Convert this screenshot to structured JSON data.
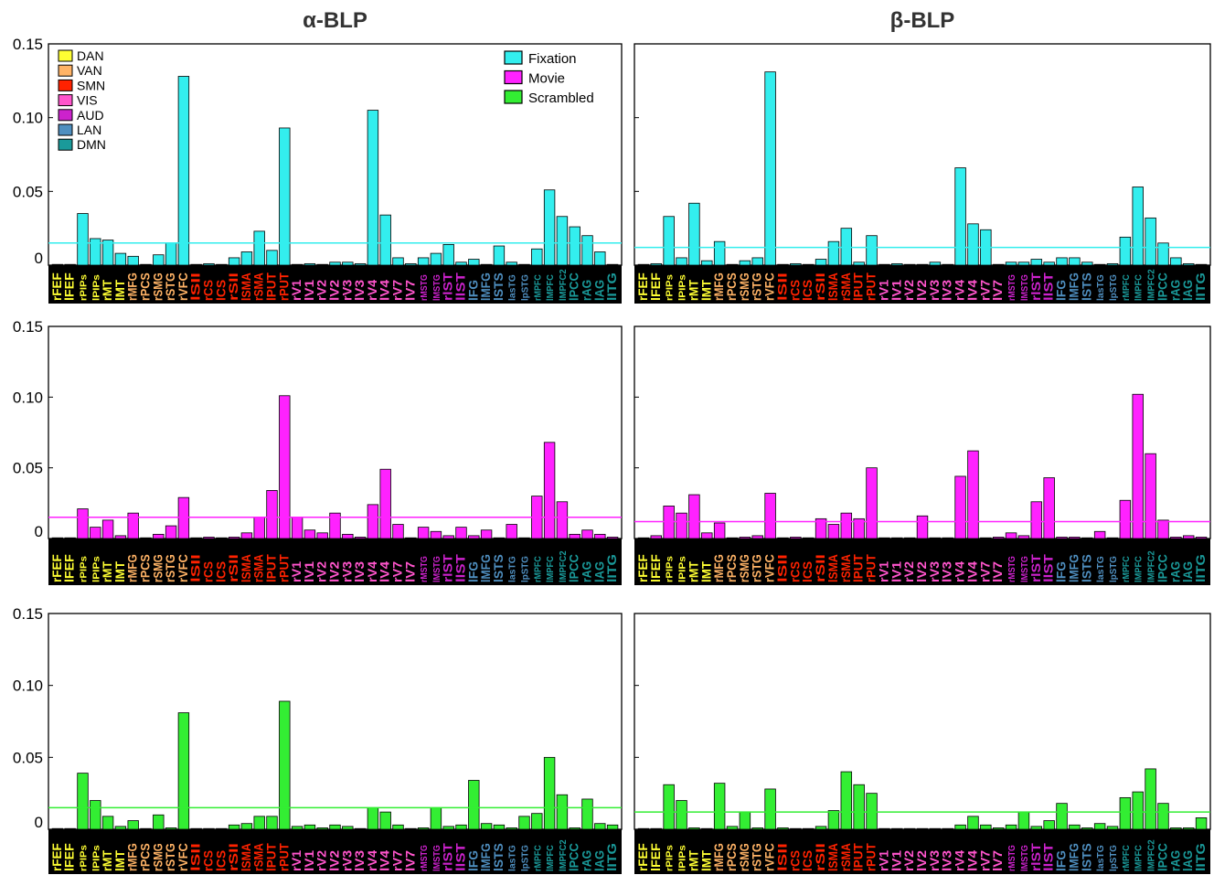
{
  "colors": {
    "DAN": "#ffff33",
    "VAN": "#ffb366",
    "SMN": "#ff2200",
    "VIS": "#ff55cc",
    "AUD": "#cc22cc",
    "LAN": "#4f8fc0",
    "DMN": "#1a9a9a",
    "Fixation": "#33eeee",
    "Movie": "#ff22ff",
    "Scrambled": "#33ee33"
  },
  "chart_data": [
    {
      "type": "bar",
      "title": "α-BLP",
      "condition": "Fixation",
      "ylim": [
        0,
        0.15
      ],
      "yticks": [
        "0",
        "0.05",
        "0.10",
        "0.15"
      ],
      "threshold": 0.015,
      "legend_networks": [
        "DAN",
        "VAN",
        "SMN",
        "VIS",
        "AUD",
        "LAN",
        "DMN"
      ],
      "legend_conditions": [
        "Fixation",
        "Movie",
        "Scrambled"
      ],
      "categories": [
        "rFEF",
        "lFEF",
        "rPIPs",
        "lPIPs",
        "rMT",
        "lMT",
        "rMFG",
        "rPCS",
        "rSMG",
        "rSTG",
        "rVFC",
        "lSII",
        "rCS",
        "lCS",
        "rSII",
        "lSMA",
        "rSMA",
        "lPUT",
        "rPUT",
        "rV1",
        "lV1",
        "rV2",
        "lV2",
        "rV3",
        "lV3",
        "rV4",
        "lV4",
        "rV7",
        "lV7",
        "rMSTG",
        "lMSTG",
        "rlST",
        "llST",
        "lFG",
        "lMFG",
        "lSTS",
        "lasTG",
        "lpSTG",
        "rMPFC",
        "lMPFC",
        "lMPFC2",
        "lPCC",
        "rAG",
        "lAG",
        "lITG"
      ],
      "category_networks": [
        "DAN",
        "DAN",
        "DAN",
        "DAN",
        "DAN",
        "DAN",
        "VAN",
        "VAN",
        "VAN",
        "VAN",
        "VAN",
        "SMN",
        "SMN",
        "SMN",
        "SMN",
        "SMN",
        "SMN",
        "SMN",
        "SMN",
        "VIS",
        "VIS",
        "VIS",
        "VIS",
        "VIS",
        "VIS",
        "VIS",
        "VIS",
        "VIS",
        "VIS",
        "AUD",
        "AUD",
        "AUD",
        "AUD",
        "LAN",
        "LAN",
        "LAN",
        "LAN",
        "LAN",
        "DMN",
        "DMN",
        "DMN",
        "DMN",
        "DMN",
        "DMN",
        "DMN"
      ],
      "values": [
        0.0,
        0.0,
        0.035,
        0.018,
        0.017,
        0.008,
        0.006,
        0.0,
        0.007,
        0.015,
        0.128,
        0.0,
        0.001,
        0.0,
        0.005,
        0.009,
        0.023,
        0.01,
        0.093,
        0.0,
        0.001,
        0.0,
        0.002,
        0.002,
        0.001,
        0.105,
        0.034,
        0.005,
        0.001,
        0.005,
        0.008,
        0.014,
        0.002,
        0.004,
        0.0,
        0.013,
        0.002,
        0.0,
        0.011,
        0.051,
        0.033,
        0.026,
        0.02,
        0.009,
        0.0
      ]
    },
    {
      "type": "bar",
      "title": "β-BLP",
      "condition": "Fixation",
      "ylim": [
        0,
        0.15
      ],
      "threshold": 0.012,
      "categories": [
        "rFEF",
        "lFEF",
        "rPIPs",
        "lPIPs",
        "rMT",
        "lMT",
        "rMFG",
        "rPCS",
        "rSMG",
        "rSTG",
        "rVFC",
        "lSII",
        "rCS",
        "lCS",
        "rSII",
        "lSMA",
        "rSMA",
        "lPUT",
        "rPUT",
        "rV1",
        "lV1",
        "rV2",
        "lV2",
        "rV3",
        "lV3",
        "rV4",
        "lV4",
        "rV7",
        "lV7",
        "rMSTG",
        "lMSTG",
        "rlST",
        "llST",
        "lFG",
        "lMFG",
        "lSTS",
        "lasTG",
        "lpSTG",
        "rMPFC",
        "lMPFC",
        "lMPFC2",
        "lPCC",
        "rAG",
        "lAG",
        "lITG"
      ],
      "values": [
        0.0,
        0.001,
        0.033,
        0.005,
        0.042,
        0.003,
        0.016,
        0.0,
        0.003,
        0.005,
        0.131,
        0.0,
        0.001,
        0.0,
        0.004,
        0.016,
        0.025,
        0.002,
        0.02,
        0.0,
        0.001,
        0.0,
        0.0,
        0.002,
        0.0,
        0.066,
        0.028,
        0.024,
        0.0,
        0.002,
        0.002,
        0.004,
        0.002,
        0.005,
        0.005,
        0.002,
        0.0,
        0.001,
        0.019,
        0.053,
        0.032,
        0.015,
        0.005,
        0.001,
        0.0
      ]
    },
    {
      "type": "bar",
      "title": "",
      "condition": "Movie",
      "ylim": [
        0,
        0.15
      ],
      "yticks": [
        "0",
        "0.05",
        "0.10",
        "0.15"
      ],
      "threshold": 0.015,
      "categories": [
        "rFEF",
        "lFEF",
        "rPIPs",
        "lPIPs",
        "rMT",
        "lMT",
        "rMFG",
        "rPCS",
        "rSMG",
        "rSTG",
        "rVFC",
        "lSII",
        "rCS",
        "lCS",
        "rSII",
        "lSMA",
        "rSMA",
        "lPUT",
        "rPUT",
        "rV1",
        "lV1",
        "rV2",
        "lV2",
        "rV3",
        "lV3",
        "rV4",
        "lV4",
        "rV7",
        "lV7",
        "rMSTG",
        "lMSTG",
        "rlST",
        "llST",
        "lFG",
        "lMFG",
        "lSTS",
        "lasTG",
        "lpSTG",
        "rMPFC",
        "lMPFC",
        "lMPFC2",
        "lPCC",
        "rAG",
        "lAG",
        "lITG"
      ],
      "values": [
        0.0,
        0.0,
        0.021,
        0.008,
        0.013,
        0.002,
        0.018,
        0.0,
        0.003,
        0.009,
        0.029,
        0.0,
        0.001,
        0.0,
        0.001,
        0.004,
        0.015,
        0.034,
        0.101,
        0.015,
        0.006,
        0.004,
        0.018,
        0.003,
        0.001,
        0.024,
        0.049,
        0.01,
        0.0,
        0.008,
        0.005,
        0.002,
        0.008,
        0.002,
        0.006,
        0.0,
        0.01,
        0.0,
        0.03,
        0.068,
        0.026,
        0.003,
        0.006,
        0.003,
        0.001
      ]
    },
    {
      "type": "bar",
      "title": "",
      "condition": "Movie",
      "ylim": [
        0,
        0.15
      ],
      "threshold": 0.012,
      "categories": [
        "rFEF",
        "lFEF",
        "rPIPs",
        "lPIPs",
        "rMT",
        "lMT",
        "rMFG",
        "rPCS",
        "rSMG",
        "rSTG",
        "rVFC",
        "lSII",
        "rCS",
        "lCS",
        "rSII",
        "lSMA",
        "rSMA",
        "lPUT",
        "rPUT",
        "rV1",
        "lV1",
        "rV2",
        "lV2",
        "rV3",
        "lV3",
        "rV4",
        "lV4",
        "rV7",
        "lV7",
        "rMSTG",
        "lMSTG",
        "rlST",
        "llST",
        "lFG",
        "lMFG",
        "lSTS",
        "lasTG",
        "lpSTG",
        "rMPFC",
        "lMPFC",
        "lMPFC2",
        "lPCC",
        "rAG",
        "lAG",
        "lITG"
      ],
      "values": [
        0.0,
        0.002,
        0.023,
        0.018,
        0.031,
        0.004,
        0.011,
        0.0,
        0.001,
        0.002,
        0.032,
        0.0,
        0.001,
        0.0,
        0.014,
        0.01,
        0.018,
        0.014,
        0.05,
        0.0,
        0.0,
        0.0,
        0.016,
        0.0,
        0.0,
        0.044,
        0.062,
        0.0,
        0.001,
        0.004,
        0.002,
        0.026,
        0.043,
        0.001,
        0.001,
        0.0,
        0.005,
        0.0,
        0.027,
        0.102,
        0.06,
        0.013,
        0.001,
        0.002,
        0.001
      ]
    },
    {
      "type": "bar",
      "title": "",
      "condition": "Scrambled",
      "ylim": [
        0,
        0.15
      ],
      "yticks": [
        "0",
        "0.05",
        "0.10",
        "0.15"
      ],
      "threshold": 0.015,
      "categories": [
        "rFEF",
        "lFEF",
        "rPIPs",
        "lPIPs",
        "rMT",
        "lMT",
        "rMFG",
        "rPCS",
        "rSMG",
        "rSTG",
        "rVFC",
        "lSII",
        "rCS",
        "lCS",
        "rSII",
        "lSMA",
        "rSMA",
        "lPUT",
        "rPUT",
        "rV1",
        "lV1",
        "rV2",
        "lV2",
        "rV3",
        "lV3",
        "rV4",
        "lV4",
        "rV7",
        "lV7",
        "rMSTG",
        "lMSTG",
        "rlST",
        "llST",
        "lFG",
        "lMFG",
        "lSTS",
        "lasTG",
        "lpSTG",
        "rMPFC",
        "lMPFC",
        "lMPFC2",
        "lPCC",
        "rAG",
        "lAG",
        "lITG"
      ],
      "values": [
        0.0,
        0.0,
        0.039,
        0.02,
        0.009,
        0.002,
        0.006,
        0.0,
        0.01,
        0.001,
        0.081,
        0.0,
        0.0,
        0.0,
        0.003,
        0.004,
        0.009,
        0.009,
        0.089,
        0.002,
        0.003,
        0.001,
        0.003,
        0.002,
        0.0,
        0.015,
        0.012,
        0.003,
        0.0,
        0.001,
        0.015,
        0.002,
        0.003,
        0.034,
        0.004,
        0.003,
        0.001,
        0.009,
        0.011,
        0.05,
        0.024,
        0.001,
        0.021,
        0.004,
        0.003
      ]
    },
    {
      "type": "bar",
      "title": "",
      "condition": "Scrambled",
      "ylim": [
        0,
        0.15
      ],
      "threshold": 0.012,
      "categories": [
        "rFEF",
        "lFEF",
        "rPIPs",
        "lPIPs",
        "rMT",
        "lMT",
        "rMFG",
        "rPCS",
        "rSMG",
        "rSTG",
        "rVFC",
        "lSII",
        "rCS",
        "lCS",
        "rSII",
        "lSMA",
        "rSMA",
        "lPUT",
        "rPUT",
        "rV1",
        "lV1",
        "rV2",
        "lV2",
        "rV3",
        "lV3",
        "rV4",
        "lV4",
        "rV7",
        "lV7",
        "rMSTG",
        "lMSTG",
        "rlST",
        "llST",
        "lFG",
        "lMFG",
        "lSTS",
        "lasTG",
        "lpSTG",
        "rMPFC",
        "lMPFC",
        "lMPFC2",
        "lPCC",
        "rAG",
        "lAG",
        "lITG"
      ],
      "values": [
        0.0,
        0.0,
        0.031,
        0.02,
        0.001,
        0.0,
        0.032,
        0.002,
        0.012,
        0.001,
        0.028,
        0.001,
        0.0,
        0.0,
        0.002,
        0.013,
        0.04,
        0.031,
        0.025,
        0.0,
        0.0,
        0.0,
        0.0,
        0.0,
        0.0,
        0.003,
        0.009,
        0.003,
        0.001,
        0.003,
        0.012,
        0.002,
        0.006,
        0.018,
        0.003,
        0.001,
        0.004,
        0.002,
        0.022,
        0.026,
        0.042,
        0.018,
        0.001,
        0.001,
        0.008
      ]
    }
  ]
}
